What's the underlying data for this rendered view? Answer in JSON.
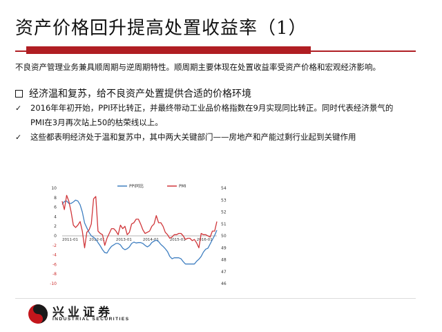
{
  "slide": {
    "title": "资产价格回升提高处置收益率（1）",
    "intro": "不良资产管理业务兼具顺周期与逆周期特性。顺周期主要体现在处置收益率受资产价格和宏观经济影响。",
    "heading": "经济温和复苏，给不良资产处置提供合适的价格环境",
    "bullets": [
      {
        "text": "2016年年初开始，PPI环比转正，并最终带动工业品价格指数在9月实现同比转正。同时代表经济景气的PMI在3月再次站上50的枯荣线以上。"
      },
      {
        "text": "这些都表明经济处于温和复苏中，其中两大关键部门——房地产和产能过剩行业起到关键作用"
      }
    ]
  },
  "colors": {
    "accent": "#b01e23",
    "ppi": "#3f7fc1",
    "pmi": "#d0363a"
  },
  "chart_data": {
    "type": "line",
    "x_tick_labels": [
      "2011-01",
      "2012-01",
      "2013-01",
      "2014-01",
      "2015-01",
      "2016-01"
    ],
    "legend": [
      "PPI同比",
      "PMI"
    ],
    "legend_position": "top",
    "left_axis": {
      "ticks": [
        "10",
        "8",
        "6",
        "4",
        "2",
        "0",
        "-2",
        "-4",
        "-6",
        "-8",
        "-10"
      ],
      "range": [
        -10,
        10
      ]
    },
    "right_axis": {
      "ticks": [
        "54",
        "53",
        "52",
        "51",
        "50",
        "49",
        "48",
        "47",
        "46"
      ],
      "range": [
        46,
        54
      ]
    },
    "series": [
      {
        "name": "PPI同比",
        "axis": "left",
        "x": [
          2011.0,
          2011.083,
          2011.167,
          2011.25,
          2011.333,
          2011.417,
          2011.5,
          2011.583,
          2011.667,
          2011.75,
          2011.833,
          2011.917,
          2012.0,
          2012.083,
          2012.167,
          2012.25,
          2012.333,
          2012.417,
          2012.5,
          2012.583,
          2012.667,
          2012.75,
          2012.833,
          2012.917,
          2013.0,
          2013.083,
          2013.167,
          2013.25,
          2013.333,
          2013.417,
          2013.5,
          2013.583,
          2013.667,
          2013.75,
          2013.833,
          2013.917,
          2014.0,
          2014.083,
          2014.167,
          2014.25,
          2014.333,
          2014.417,
          2014.5,
          2014.583,
          2014.667,
          2014.75,
          2014.833,
          2014.917,
          2015.0,
          2015.083,
          2015.167,
          2015.25,
          2015.333,
          2015.417,
          2015.5,
          2015.583,
          2015.667,
          2015.75,
          2015.833,
          2015.917,
          2016.0,
          2016.083,
          2016.167,
          2016.25,
          2016.333,
          2016.417,
          2016.5,
          2016.583,
          2016.667,
          2016.75
        ],
        "values": [
          6.6,
          7.2,
          7.3,
          6.8,
          6.8,
          7.1,
          7.5,
          7.3,
          6.5,
          5.0,
          2.7,
          1.7,
          0.7,
          0.0,
          -0.3,
          -0.7,
          -1.4,
          -2.1,
          -2.9,
          -3.5,
          -3.6,
          -2.8,
          -2.2,
          -1.9,
          -1.6,
          -1.6,
          -1.9,
          -2.6,
          -2.9,
          -2.7,
          -2.3,
          -1.6,
          -1.3,
          -1.5,
          -1.4,
          -1.4,
          -1.6,
          -2.0,
          -2.3,
          -2.0,
          -1.4,
          -1.1,
          -0.9,
          -1.2,
          -1.8,
          -2.2,
          -2.7,
          -3.3,
          -4.3,
          -4.8,
          -4.6,
          -4.6,
          -4.6,
          -4.8,
          -5.4,
          -5.9,
          -5.9,
          -5.9,
          -5.9,
          -5.9,
          -5.3,
          -4.9,
          -4.3,
          -3.4,
          -2.8,
          -2.6,
          -1.7,
          -0.8,
          0.1,
          1.2
        ]
      },
      {
        "name": "PMI",
        "axis": "right",
        "x": [
          2011.0,
          2011.083,
          2011.167,
          2011.25,
          2011.333,
          2011.417,
          2011.5,
          2011.583,
          2011.667,
          2011.75,
          2011.833,
          2011.917,
          2012.0,
          2012.083,
          2012.167,
          2012.25,
          2012.333,
          2012.417,
          2012.5,
          2012.583,
          2012.667,
          2012.75,
          2012.833,
          2012.917,
          2013.0,
          2013.083,
          2013.167,
          2013.25,
          2013.333,
          2013.417,
          2013.5,
          2013.583,
          2013.667,
          2013.75,
          2013.833,
          2013.917,
          2014.0,
          2014.083,
          2014.167,
          2014.25,
          2014.333,
          2014.417,
          2014.5,
          2014.583,
          2014.667,
          2014.75,
          2014.833,
          2014.917,
          2015.0,
          2015.083,
          2015.167,
          2015.25,
          2015.333,
          2015.417,
          2015.5,
          2015.583,
          2015.667,
          2015.75,
          2015.833,
          2015.917,
          2016.0,
          2016.083,
          2016.167,
          2016.25,
          2016.333,
          2016.417,
          2016.5,
          2016.583,
          2016.667,
          2016.75
        ],
        "values": [
          52.9,
          52.2,
          53.4,
          52.9,
          52.0,
          50.9,
          50.7,
          50.9,
          51.2,
          50.4,
          49.0,
          50.3,
          50.5,
          51.0,
          53.1,
          53.3,
          50.4,
          50.2,
          50.1,
          49.2,
          49.8,
          50.2,
          50.6,
          50.6,
          50.4,
          50.1,
          50.9,
          50.6,
          50.8,
          50.1,
          50.3,
          51.0,
          51.1,
          51.4,
          51.4,
          51.0,
          50.5,
          50.2,
          50.3,
          50.4,
          50.8,
          51.0,
          51.7,
          51.1,
          51.1,
          50.8,
          50.3,
          50.1,
          49.8,
          49.9,
          50.1,
          50.1,
          50.2,
          50.2,
          50.0,
          49.7,
          49.8,
          49.8,
          49.6,
          49.7,
          49.4,
          49.0,
          50.2,
          50.1,
          50.1,
          50.0,
          49.9,
          50.4,
          50.4,
          51.2
        ]
      }
    ]
  },
  "footer": {
    "logo_cn": "兴业证券",
    "logo_en": "INDUSTRIAL SECURITIES"
  }
}
